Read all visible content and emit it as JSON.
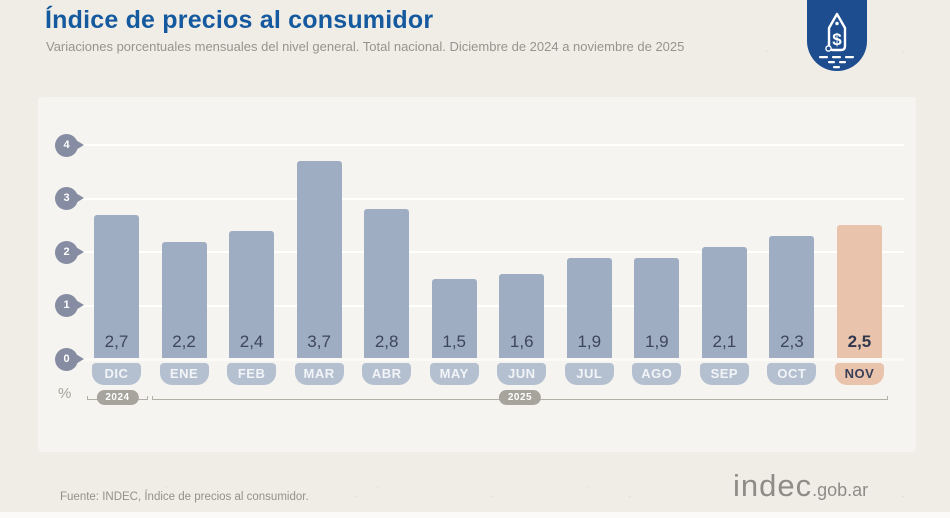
{
  "header": {
    "title": "Índice de precios al consumidor",
    "subtitle": "Variaciones porcentuales mensuales del nivel general. Total nacional. Diciembre de 2024 a noviembre de 2025"
  },
  "badge": {
    "icon": "price-tag-icon"
  },
  "chart_data": {
    "type": "bar",
    "title": "Índice de precios al consumidor",
    "xlabel": "",
    "ylabel": "%",
    "ylim": [
      0,
      4
    ],
    "yticks": [
      4,
      3,
      2,
      1,
      0
    ],
    "grid": true,
    "categories": [
      "DIC",
      "ENE",
      "FEB",
      "MAR",
      "ABR",
      "MAY",
      "JUN",
      "JUL",
      "AGO",
      "SEP",
      "OCT",
      "NOV"
    ],
    "values": [
      2.7,
      2.2,
      2.4,
      3.7,
      2.8,
      1.5,
      1.6,
      1.9,
      1.9,
      2.1,
      2.3,
      2.5
    ],
    "value_labels": [
      "2,7",
      "2,2",
      "2,4",
      "3,7",
      "2,8",
      "1,5",
      "1,6",
      "1,9",
      "1,9",
      "2,1",
      "2,3",
      "2,5"
    ],
    "highlight_index": 11,
    "year_groups": [
      {
        "label": "2024",
        "start": 0,
        "end": 0
      },
      {
        "label": "2025",
        "start": 1,
        "end": 11
      }
    ],
    "colors": {
      "bar": "#9fadc2",
      "bar_highlight": "#e9c3ab",
      "month_pill": "#b4c0d0",
      "month_pill_highlight": "#e9c3ab",
      "value_text": "#3e455e",
      "value_text_highlight": "#32374e",
      "pill_text": "#f2f4f7",
      "pill_text_highlight": "#3a3f58",
      "axis_pin": "#868ca2",
      "title": "#15599e",
      "badge": "#1d4d8f"
    }
  },
  "footer": {
    "source": "Fuente: INDEC, Índice de precios al consumidor.",
    "logo_text": "indec",
    "logo_suffix": ".gob.ar"
  }
}
